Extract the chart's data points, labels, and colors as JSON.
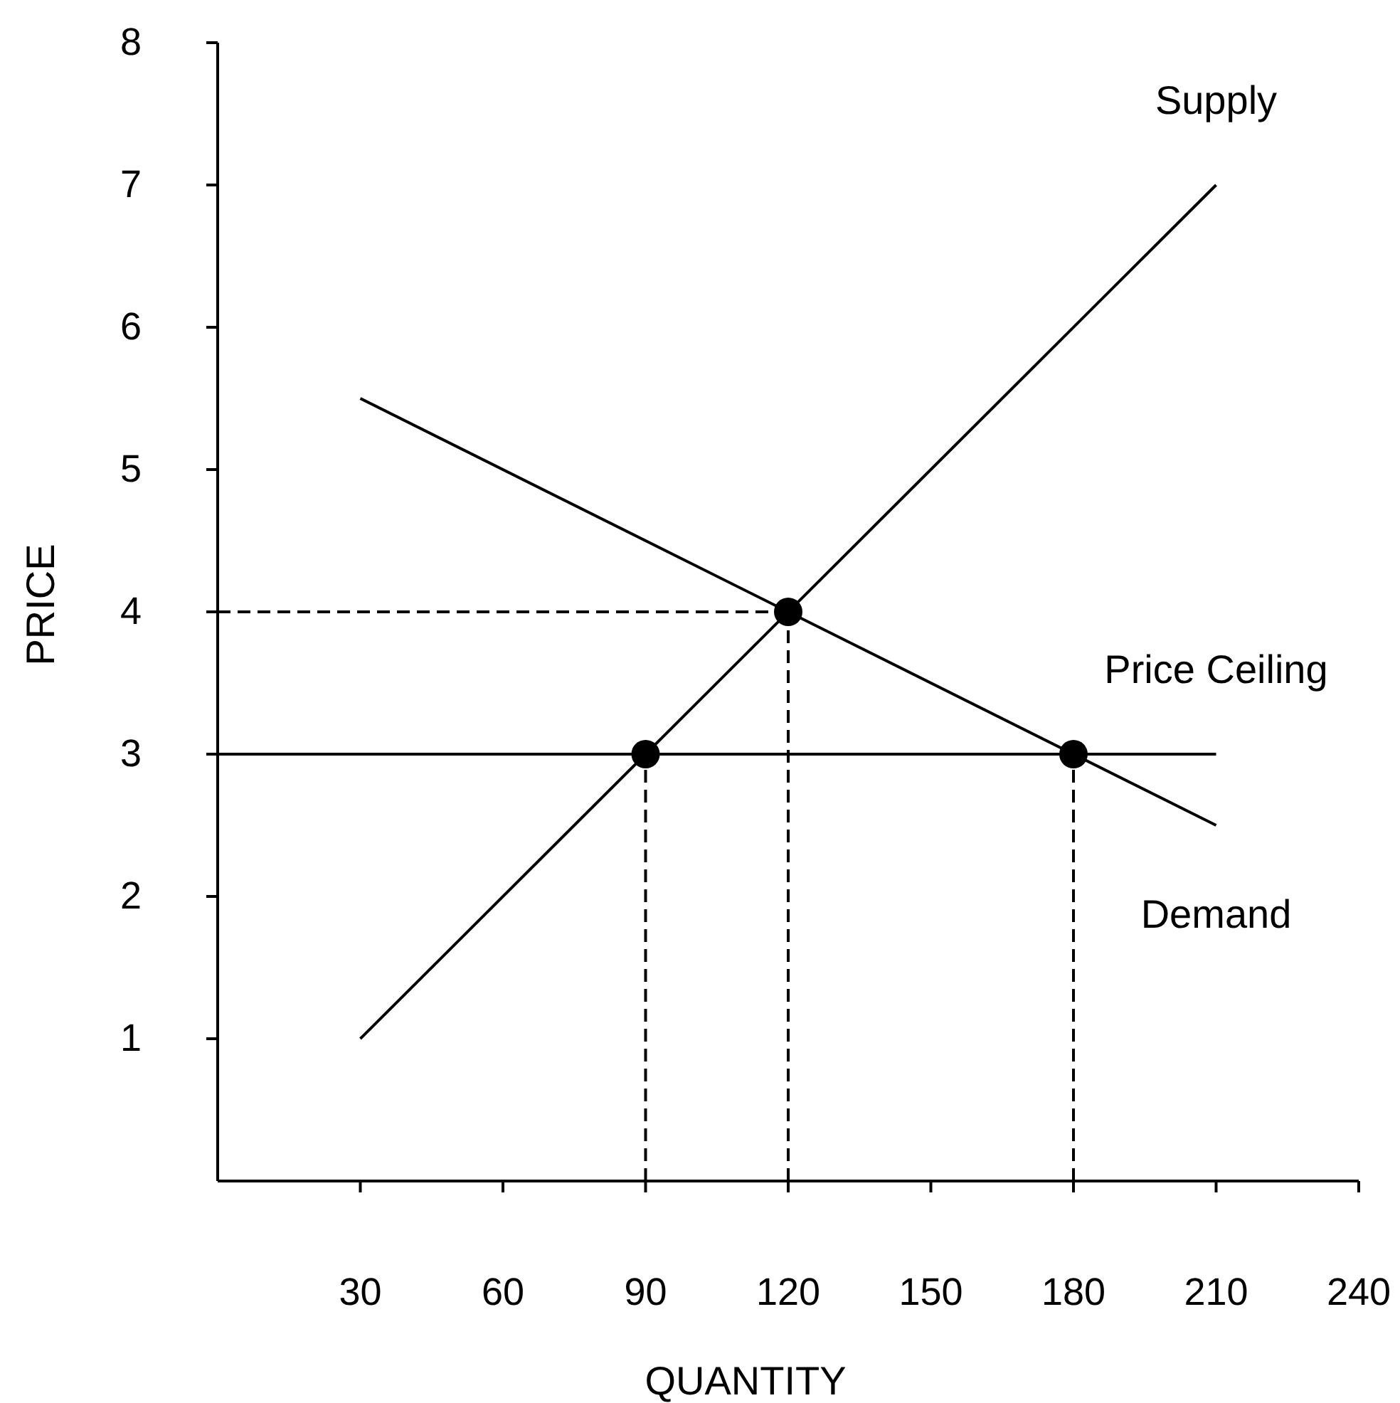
{
  "chart_data": {
    "type": "line",
    "xlabel": "QUANTITY",
    "ylabel": "PRICE",
    "xlim": [
      0,
      240
    ],
    "ylim": [
      0,
      8
    ],
    "xticks": [
      30,
      60,
      90,
      120,
      150,
      180,
      210,
      240
    ],
    "yticks": [
      1,
      2,
      3,
      4,
      5,
      6,
      7,
      8
    ],
    "grid": false,
    "marker": "none",
    "series": [
      {
        "name": "Supply",
        "color": "#000000",
        "x": [
          30,
          210
        ],
        "values": [
          1,
          7
        ]
      },
      {
        "name": "Demand",
        "color": "#000000",
        "x": [
          30,
          210
        ],
        "values": [
          5.5,
          2.5
        ]
      },
      {
        "name": "Price Ceiling",
        "color": "#000000",
        "x": [
          0,
          210
        ],
        "values": [
          3,
          3
        ]
      },
      {
        "color": "#000000",
        "x": [
          0,
          120
        ],
        "values": [
          4,
          4
        ],
        "line_style": "dashed"
      },
      {
        "color": "#000000",
        "x": [
          120,
          120
        ],
        "values": [
          0,
          4
        ],
        "line_style": "dashed"
      },
      {
        "color": "#000000",
        "x": [
          90,
          90
        ],
        "values": [
          0,
          3
        ],
        "line_style": "dashed"
      },
      {
        "color": "#000000",
        "x": [
          180,
          180
        ],
        "values": [
          0,
          3
        ],
        "line_style": "dashed"
      },
      {
        "type": "scatter",
        "color": "#000000",
        "x": [
          90,
          120,
          180
        ],
        "values": [
          3,
          4,
          3
        ],
        "marker": "circle"
      }
    ]
  }
}
